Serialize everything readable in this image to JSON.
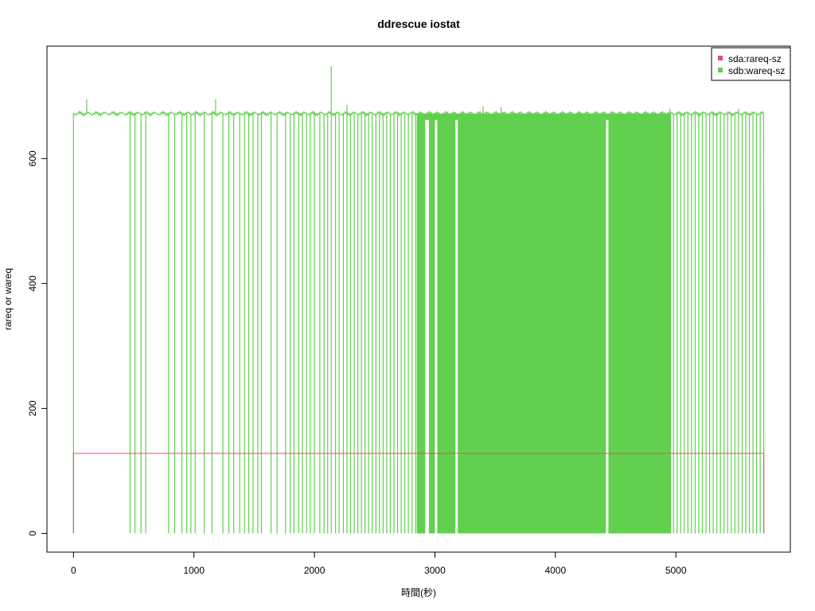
{
  "chart_data": {
    "type": "line",
    "title": "ddrescue iostat",
    "xlabel": "時間(秒)",
    "ylabel": "rareq or wareq",
    "xlim": [
      -220,
      5950
    ],
    "ylim": [
      -30,
      780
    ],
    "x_ticks": [
      0,
      1000,
      2000,
      3000,
      4000,
      5000
    ],
    "y_ticks": [
      0,
      200,
      400,
      600
    ],
    "legend": {
      "position": "top-right",
      "entries": [
        {
          "label": "sda:rareq-sz",
          "color": "#DF536B"
        },
        {
          "label": "sdb:wareq-sz",
          "color": "#61D04F"
        }
      ]
    },
    "series": [
      {
        "name": "sda:rareq-sz",
        "color": "#DF536B",
        "points": [
          [
            0,
            0
          ],
          [
            0,
            128
          ],
          [
            5730,
            128
          ],
          [
            5730,
            0
          ]
        ]
      },
      {
        "name": "sdb:wareq-sz",
        "color": "#61D04F",
        "x_range": [
          0,
          5730
        ],
        "baseline": 672,
        "spikes_up": [
          [
            110,
            695
          ],
          [
            1180,
            695
          ],
          [
            2140,
            748
          ],
          [
            2270,
            686
          ],
          [
            3400,
            684
          ],
          [
            3550,
            682
          ],
          [
            4950,
            680
          ],
          [
            5520,
            680
          ]
        ],
        "drops_to_zero_sparse": [
          470,
          510,
          560,
          600,
          790,
          840,
          900,
          940,
          975,
          1010,
          1085,
          1150,
          1240,
          1290,
          1330,
          1380,
          1420,
          1455,
          1490,
          1530,
          1560,
          1640,
          1690,
          1760,
          1800,
          1830,
          1870,
          1900,
          1935,
          1965,
          2000,
          2045,
          2080,
          2110,
          2140,
          2175,
          2205,
          2240,
          2270,
          2300,
          2330,
          2360,
          2390,
          2420,
          2450,
          2480,
          2510,
          2540,
          2570,
          2600,
          2630,
          2660,
          2690,
          2720,
          2750,
          2780,
          2810,
          2840
        ],
        "dense_zero_region": [
          2850,
          4960
        ],
        "dense_gaps": [
          [
            2920,
            2950
          ],
          [
            3000,
            3020
          ],
          [
            3170,
            3190
          ],
          [
            4420,
            4440
          ]
        ],
        "drops_to_zero_tail": [
          4980,
          5010,
          5040,
          5070,
          5100,
          5130,
          5160,
          5190,
          5220,
          5250,
          5280,
          5310,
          5340,
          5370,
          5400,
          5430,
          5460,
          5490,
          5520,
          5550,
          5580,
          5610,
          5640,
          5670,
          5700
        ]
      }
    ]
  }
}
